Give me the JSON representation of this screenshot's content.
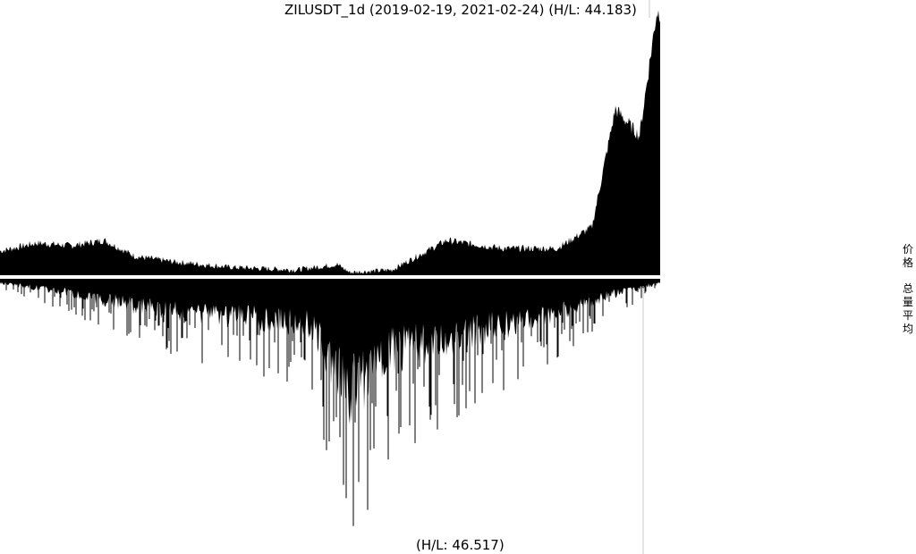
{
  "chart_data": {
    "type": "area",
    "title": "ZILUSDT_1d (2019-02-19, 2021-02-24) (H/L: 44.183)",
    "x_range": [
      "2019-02-19",
      "2021-02-24"
    ],
    "price_panel": {
      "hl_ratio": 44.183,
      "relative_level_samples": [
        [
          "2019-02-19",
          0.09
        ],
        [
          "2019-04-01",
          0.12
        ],
        [
          "2019-05-10",
          0.11
        ],
        [
          "2019-06-15",
          0.13
        ],
        [
          "2019-07-20",
          0.07
        ],
        [
          "2019-09-01",
          0.05
        ],
        [
          "2019-11-01",
          0.03
        ],
        [
          "2020-01-15",
          0.02
        ],
        [
          "2020-03-01",
          0.04
        ],
        [
          "2020-03-15",
          0.01
        ],
        [
          "2020-05-01",
          0.02
        ],
        [
          "2020-07-01",
          0.13
        ],
        [
          "2020-09-01",
          0.1
        ],
        [
          "2020-11-01",
          0.1
        ],
        [
          "2020-12-10",
          0.18
        ],
        [
          "2021-01-05",
          0.62
        ],
        [
          "2021-02-01",
          0.52
        ],
        [
          "2021-02-20",
          0.98
        ]
      ]
    },
    "volume_panel": {
      "hl_ratio": 46.517,
      "relative_level_samples": [
        [
          "2019-02-19",
          0.03
        ],
        [
          "2019-05-01",
          0.1
        ],
        [
          "2019-08-01",
          0.22
        ],
        [
          "2019-11-01",
          0.28
        ],
        [
          "2020-02-01",
          0.35
        ],
        [
          "2020-03-15",
          0.85
        ],
        [
          "2020-05-01",
          0.55
        ],
        [
          "2020-08-01",
          0.4
        ],
        [
          "2020-11-01",
          0.25
        ],
        [
          "2021-01-01",
          0.12
        ],
        [
          "2021-02-24",
          0.03
        ]
      ]
    },
    "legend": [
      "价格",
      "总量平均"
    ]
  }
}
